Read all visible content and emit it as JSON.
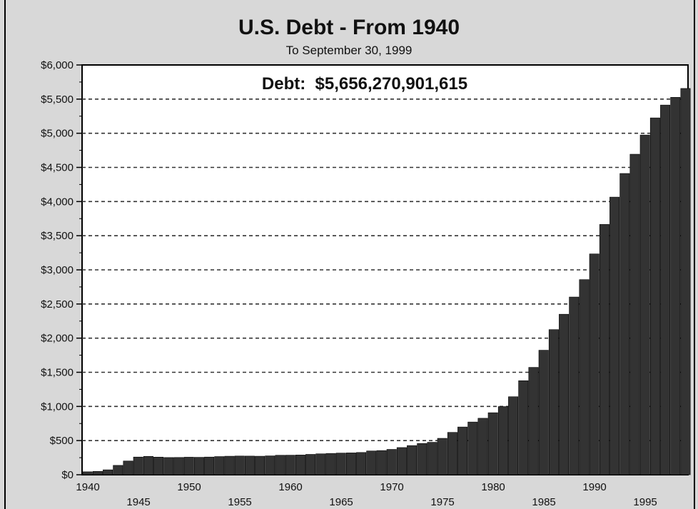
{
  "chart_data": {
    "type": "bar",
    "title": "U.S. Debt - From 1940",
    "subtitle": "To September 30, 1999",
    "annotation": "Debt:  $5,656,270,901,615",
    "xlabel": "",
    "ylabel": "",
    "ylim": [
      0,
      6000
    ],
    "y_ticks": [
      0,
      500,
      1000,
      1500,
      2000,
      2500,
      3000,
      3500,
      4000,
      4500,
      5000,
      5500,
      6000
    ],
    "y_tick_labels": [
      "$0",
      "$500",
      "$1,000",
      "$1,500",
      "$2,000",
      "$2,500",
      "$3,000",
      "$3,500",
      "$4,000",
      "$4,500",
      "$5,000",
      "$5,500",
      "$6,000"
    ],
    "x_tick_labels_upper": [
      "1940",
      "1950",
      "1960",
      "1970",
      "1980",
      "1990"
    ],
    "x_tick_labels_lower": [
      "1945",
      "1955",
      "1965",
      "1975",
      "1985",
      "1995"
    ],
    "grid": "horizontal dashed",
    "bar_color": "#333333",
    "categories": [
      "1940",
      "1941",
      "1942",
      "1943",
      "1944",
      "1945",
      "1946",
      "1947",
      "1948",
      "1949",
      "1950",
      "1951",
      "1952",
      "1953",
      "1954",
      "1955",
      "1956",
      "1957",
      "1958",
      "1959",
      "1960",
      "1961",
      "1962",
      "1963",
      "1964",
      "1965",
      "1966",
      "1967",
      "1968",
      "1969",
      "1970",
      "1971",
      "1972",
      "1973",
      "1974",
      "1975",
      "1976",
      "1977",
      "1978",
      "1979",
      "1980",
      "1981",
      "1982",
      "1983",
      "1984",
      "1985",
      "1986",
      "1987",
      "1988",
      "1989",
      "1990",
      "1991",
      "1992",
      "1993",
      "1994",
      "1995",
      "1996",
      "1997",
      "1998",
      "1999"
    ],
    "values": [
      43,
      49,
      72,
      137,
      201,
      259,
      269,
      258,
      252,
      253,
      257,
      255,
      259,
      266,
      271,
      274,
      273,
      271,
      276,
      285,
      286,
      289,
      298,
      306,
      312,
      317,
      320,
      326,
      348,
      354,
      371,
      398,
      427,
      458,
      475,
      533,
      620,
      699,
      772,
      827,
      908,
      998,
      1142,
      1377,
      1572,
      1823,
      2125,
      2350,
      2602,
      2857,
      3233,
      3665,
      4065,
      4411,
      4693,
      4974,
      5225,
      5413,
      5526,
      5656
    ]
  }
}
